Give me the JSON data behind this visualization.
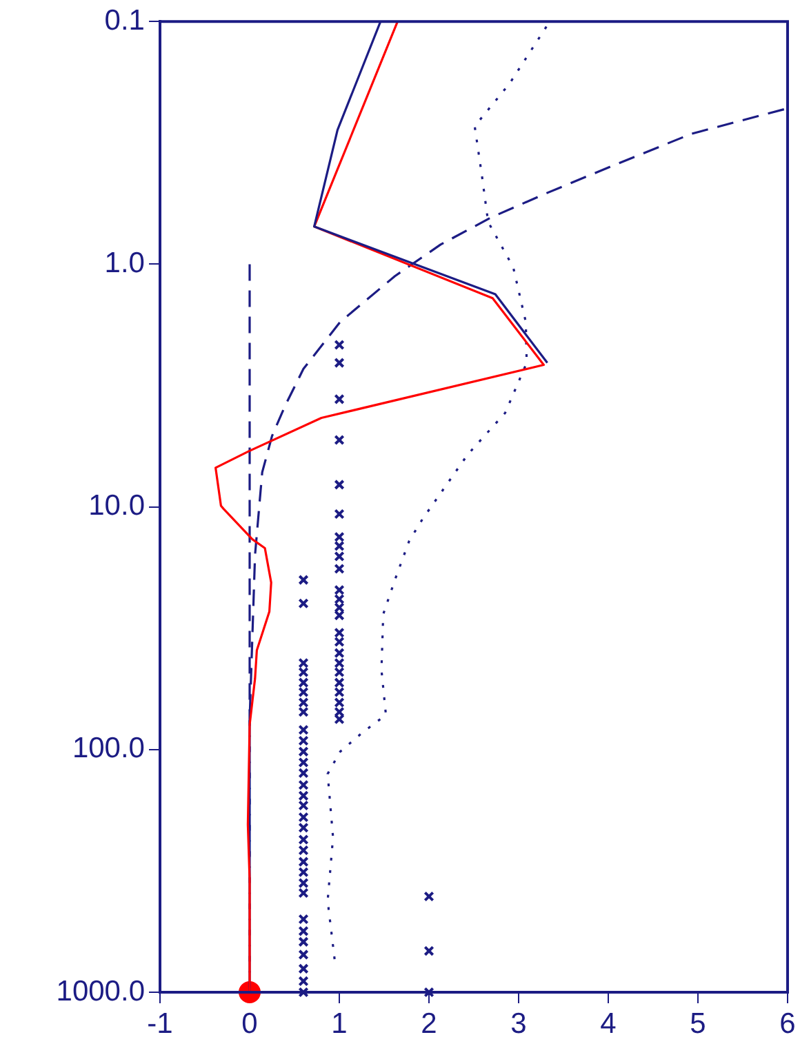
{
  "chart_data": {
    "type": "line",
    "log": "y",
    "grid": false,
    "legend": false,
    "xlim": [
      -1,
      6
    ],
    "xticks": [
      -1,
      0,
      1,
      2,
      3,
      4,
      5,
      6
    ],
    "ylim": [
      1000,
      0.1
    ],
    "yticks": [
      {
        "value": 0.1,
        "label": "0.1"
      },
      {
        "value": 1,
        "label": "1.0"
      },
      {
        "value": 10,
        "label": "10.0"
      },
      {
        "value": 100,
        "label": "100.0"
      },
      {
        "value": 1000,
        "label": "1000.0"
      }
    ],
    "series": [
      {
        "color": "#1c1c84",
        "line_style": "solid",
        "marker": "none",
        "x": [
          1.46,
          0.98,
          0.72,
          2.74,
          3.32
        ],
        "values": [
          0.1,
          0.28,
          0.7,
          1.33,
          2.55
        ]
      },
      {
        "color": "#ff0000",
        "line_style": "solid",
        "marker": "none",
        "x": [
          1.65,
          0.72,
          2.71,
          3.28,
          0.8,
          -0.01,
          -0.38,
          -0.32,
          -0.29,
          0.03,
          0.17,
          0.24,
          0.22,
          0.08,
          0.06,
          0,
          -0.02,
          0,
          0
        ],
        "values": [
          0.1,
          0.7,
          1.38,
          2.6,
          4.3,
          5.9,
          6.9,
          9.9,
          10.2,
          13.6,
          14.8,
          20.5,
          27,
          39,
          51,
          79,
          204,
          344,
          1000
        ]
      },
      {
        "color": "#1c1c84",
        "line_style": "dashed",
        "marker": "none",
        "x": [
          5.96,
          4.93,
          4.07,
          3.31,
          2.7,
          2.13,
          1.62,
          1.01,
          0.6,
          0.4,
          0.25,
          0.14,
          0.06,
          0,
          0
        ],
        "values": [
          0.23,
          0.29,
          0.39,
          0.51,
          0.64,
          0.83,
          1.12,
          1.73,
          2.7,
          3.8,
          5.1,
          7.2,
          15.8,
          75,
          1000
        ]
      },
      {
        "color": "#1c1c84",
        "line_style": "dotted",
        "marker": "none",
        "x": [
          3.31,
          2.9,
          2.51,
          2.59,
          2.66,
          2.94,
          3.08,
          3.09,
          2.85,
          2.43,
          1.93,
          1.78,
          1.62,
          1.49,
          1.47,
          1.52,
          1.26,
          1.01,
          0.87,
          0.93,
          0.87,
          0.95
        ],
        "values": [
          0.105,
          0.18,
          0.27,
          0.43,
          0.67,
          1.03,
          1.73,
          2.55,
          4.1,
          6.1,
          11.2,
          13.8,
          20,
          27.7,
          47,
          72,
          85,
          102,
          126,
          230,
          420,
          745
        ]
      },
      {
        "color": "#1c1c84",
        "line_style": "dashed",
        "marker": "none",
        "x": [
          0,
          0
        ],
        "values": [
          1,
          1000
        ]
      },
      {
        "type": "scatter",
        "color": "#1c1c84",
        "marker": "cross",
        "x": [
          1,
          1,
          1,
          1,
          1,
          1,
          1,
          1,
          1,
          1,
          1,
          1,
          1,
          1,
          1,
          1,
          1,
          1,
          1,
          1,
          1,
          1,
          1,
          1
        ],
        "values": [
          2.15,
          2.55,
          3.6,
          5.3,
          8.1,
          10.7,
          13.3,
          14.5,
          16,
          18,
          22,
          24,
          26,
          28,
          33,
          36,
          40,
          44,
          48,
          53,
          58,
          64,
          70,
          75
        ]
      },
      {
        "type": "scatter",
        "color": "#1c1c84",
        "marker": "cross",
        "x": [
          0.6,
          0.6,
          0.6,
          0.6,
          0.6,
          0.6,
          0.6,
          0.6,
          0.6,
          0.6,
          0.6,
          0.6,
          0.6,
          0.6,
          0.6,
          0.6,
          0.6,
          0.6,
          0.6,
          0.6,
          0.6,
          0.6,
          0.6,
          0.6,
          0.6,
          0.6,
          0.6,
          0.6,
          0.6,
          0.6,
          0.6
        ],
        "values": [
          20,
          25,
          44,
          48,
          53,
          58,
          64,
          70,
          83,
          92,
          102,
          113,
          125,
          140,
          155,
          170,
          190,
          210,
          235,
          260,
          290,
          320,
          355,
          390,
          500,
          560,
          620,
          700,
          800,
          900,
          1000
        ]
      },
      {
        "type": "scatter",
        "color": "#1c1c84",
        "marker": "cross",
        "x": [
          2,
          2,
          2
        ],
        "values": [
          403,
          676,
          1000
        ]
      },
      {
        "type": "scatter",
        "color": "#ff0000",
        "marker": "circle",
        "x": [
          0
        ],
        "values": [
          1000
        ]
      }
    ]
  }
}
